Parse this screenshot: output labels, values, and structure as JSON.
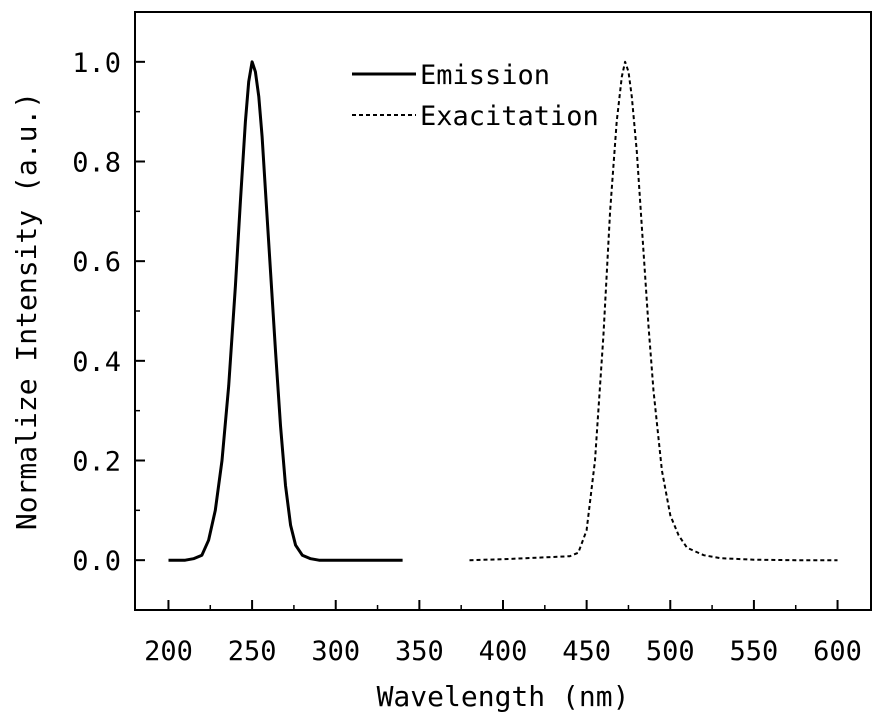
{
  "chart_data": {
    "type": "line",
    "xlabel": "Wavelength (nm)",
    "ylabel": "Normalize Intensity (a.u.)",
    "xlim": [
      180,
      620
    ],
    "ylim": [
      -0.1,
      1.1
    ],
    "x_ticks": [
      {
        "value": 200,
        "label": "200"
      },
      {
        "value": 250,
        "label": "250"
      },
      {
        "value": 300,
        "label": "300"
      },
      {
        "value": 350,
        "label": "350"
      },
      {
        "value": 400,
        "label": "400"
      },
      {
        "value": 450,
        "label": "450"
      },
      {
        "value": 500,
        "label": "500"
      },
      {
        "value": 550,
        "label": "550"
      },
      {
        "value": 600,
        "label": "600"
      }
    ],
    "y_ticks": [
      {
        "value": 0.0,
        "label": "0.0"
      },
      {
        "value": 0.2,
        "label": "0.2"
      },
      {
        "value": 0.4,
        "label": "0.4"
      },
      {
        "value": 0.6,
        "label": "0.6"
      },
      {
        "value": 0.8,
        "label": "0.8"
      },
      {
        "value": 1.0,
        "label": "1.0"
      }
    ],
    "grid": false,
    "legend": "top-center",
    "series": [
      {
        "name": "Emission",
        "style": "solid",
        "color": "#000000",
        "x": [
          200,
          210,
          215,
          220,
          224,
          228,
          232,
          236,
          240,
          243,
          246,
          248,
          250,
          252,
          254,
          256,
          258,
          261,
          264,
          267,
          270,
          273,
          276,
          280,
          285,
          290,
          300,
          320,
          340
        ],
        "y": [
          0.0,
          0.0,
          0.003,
          0.01,
          0.04,
          0.1,
          0.2,
          0.35,
          0.55,
          0.72,
          0.88,
          0.96,
          1.0,
          0.98,
          0.93,
          0.85,
          0.74,
          0.58,
          0.42,
          0.27,
          0.15,
          0.07,
          0.03,
          0.01,
          0.003,
          0.0,
          0.0,
          0.0,
          0.0
        ]
      },
      {
        "name": "Exacitation",
        "style": "dashed",
        "color": "#000000",
        "x": [
          380,
          400,
          420,
          440,
          445,
          450,
          455,
          460,
          464,
          468,
          471,
          473,
          475,
          477,
          480,
          483,
          487,
          490,
          495,
          500,
          505,
          510,
          520,
          530,
          550,
          575,
          600
        ],
        "y": [
          0.0,
          0.002,
          0.005,
          0.008,
          0.015,
          0.06,
          0.2,
          0.45,
          0.7,
          0.88,
          0.97,
          1.0,
          0.98,
          0.93,
          0.82,
          0.67,
          0.47,
          0.34,
          0.18,
          0.09,
          0.05,
          0.025,
          0.01,
          0.004,
          0.001,
          0.0,
          0.0
        ]
      }
    ]
  }
}
